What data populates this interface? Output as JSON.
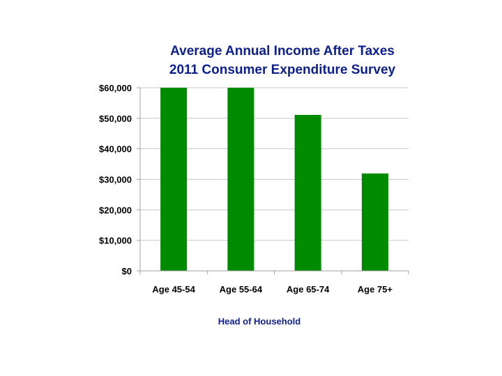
{
  "chart_data": {
    "type": "bar",
    "title": "Average Annual Income After Taxes",
    "subtitle": "2011 Consumer Expenditure Survey",
    "xlabel": "Head of Household",
    "ylabel": "",
    "categories": [
      "Age 45-54",
      "Age 55-64",
      "Age 65-74",
      "Age 75+"
    ],
    "values": [
      60000,
      60000,
      51100,
      31900
    ],
    "ylim": [
      0,
      60000
    ],
    "yticks": [
      0,
      10000,
      20000,
      30000,
      40000,
      50000,
      60000
    ],
    "ytick_labels": [
      "$0",
      "$10,000",
      "$20,000",
      "$30,000",
      "$40,000",
      "$50,000",
      "$60,000"
    ],
    "grid": true,
    "legend": "none",
    "colors": {
      "bar": "#008a00",
      "title": "#0d1f8c",
      "grid": "#c8c8c8",
      "axis": "#a0a0a0"
    }
  }
}
